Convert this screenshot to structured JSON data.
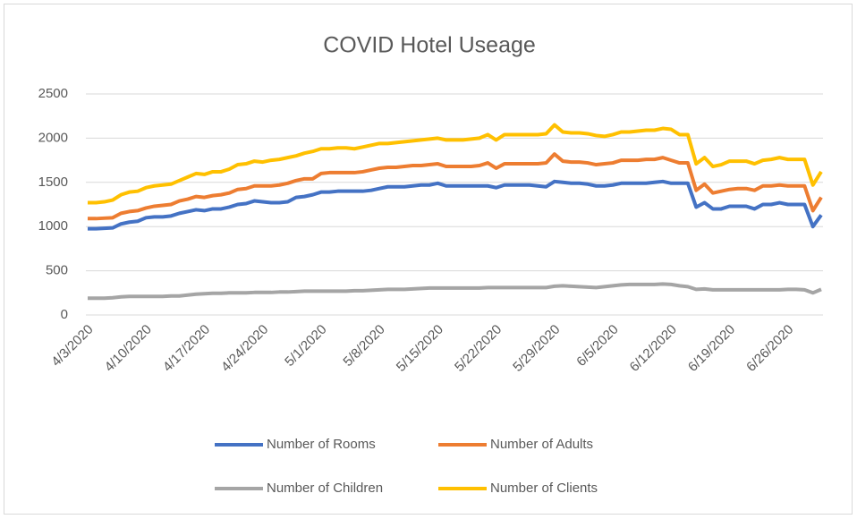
{
  "chart_data": {
    "type": "line",
    "title": "COVID Hotel Useage",
    "categories": [
      "4/3/2020",
      null,
      null,
      null,
      null,
      null,
      null,
      "4/10/2020",
      null,
      null,
      null,
      null,
      null,
      null,
      "4/17/2020",
      null,
      null,
      null,
      null,
      null,
      null,
      "4/24/2020",
      null,
      null,
      null,
      null,
      null,
      null,
      "5/1/2020",
      null,
      null,
      null,
      null,
      null,
      null,
      "5/8/2020",
      null,
      null,
      null,
      null,
      null,
      null,
      "5/15/2020",
      null,
      null,
      null,
      null,
      null,
      null,
      "5/22/2020",
      null,
      null,
      null,
      null,
      null,
      null,
      "5/29/2020",
      null,
      null,
      null,
      null,
      null,
      null,
      "6/5/2020",
      null,
      null,
      null,
      null,
      null,
      null,
      "6/12/2020",
      null,
      null,
      null,
      null,
      null,
      null,
      "6/19/2020",
      null,
      null,
      null,
      null,
      null,
      null,
      "6/26/2020",
      null,
      null,
      null,
      null
    ],
    "series": [
      {
        "name": "Number of Rooms",
        "color": "#4472c4",
        "values": [
          975,
          975,
          980,
          985,
          1030,
          1050,
          1060,
          1100,
          1110,
          1110,
          1120,
          1150,
          1170,
          1190,
          1180,
          1200,
          1200,
          1220,
          1250,
          1260,
          1290,
          1280,
          1270,
          1270,
          1280,
          1330,
          1340,
          1360,
          1390,
          1390,
          1400,
          1400,
          1400,
          1400,
          1410,
          1430,
          1450,
          1450,
          1450,
          1460,
          1470,
          1470,
          1490,
          1460,
          1460,
          1460,
          1460,
          1460,
          1460,
          1440,
          1470,
          1470,
          1470,
          1470,
          1460,
          1450,
          1510,
          1500,
          1490,
          1490,
          1480,
          1460,
          1460,
          1470,
          1490,
          1490,
          1490,
          1490,
          1500,
          1510,
          1490,
          1490,
          1490,
          1220,
          1270,
          1200,
          1200,
          1230,
          1230,
          1230,
          1200,
          1250,
          1250,
          1270,
          1250,
          1250,
          1250,
          1000,
          1130
        ]
      },
      {
        "name": "Number of Adults",
        "color": "#ed7d31",
        "values": [
          1090,
          1090,
          1095,
          1100,
          1150,
          1170,
          1180,
          1210,
          1230,
          1240,
          1250,
          1290,
          1310,
          1340,
          1330,
          1350,
          1360,
          1380,
          1420,
          1430,
          1460,
          1460,
          1460,
          1470,
          1490,
          1520,
          1540,
          1540,
          1600,
          1610,
          1610,
          1610,
          1610,
          1620,
          1640,
          1660,
          1670,
          1670,
          1680,
          1690,
          1690,
          1700,
          1710,
          1680,
          1680,
          1680,
          1680,
          1690,
          1720,
          1660,
          1710,
          1710,
          1710,
          1710,
          1710,
          1720,
          1820,
          1740,
          1730,
          1730,
          1720,
          1700,
          1710,
          1720,
          1750,
          1750,
          1750,
          1760,
          1760,
          1780,
          1750,
          1720,
          1720,
          1410,
          1480,
          1380,
          1400,
          1420,
          1430,
          1430,
          1410,
          1460,
          1460,
          1470,
          1460,
          1460,
          1460,
          1180,
          1330
        ]
      },
      {
        "name": "Number of Children",
        "color": "#a5a5a5",
        "values": [
          190,
          190,
          190,
          195,
          205,
          210,
          210,
          210,
          210,
          210,
          215,
          215,
          225,
          235,
          240,
          245,
          245,
          250,
          250,
          250,
          255,
          255,
          255,
          260,
          260,
          265,
          270,
          270,
          270,
          270,
          270,
          270,
          275,
          275,
          280,
          285,
          290,
          290,
          290,
          295,
          300,
          305,
          305,
          305,
          305,
          305,
          305,
          305,
          310,
          310,
          310,
          310,
          310,
          310,
          310,
          310,
          325,
          330,
          325,
          320,
          315,
          310,
          320,
          330,
          340,
          345,
          345,
          345,
          345,
          350,
          345,
          330,
          320,
          290,
          295,
          285,
          285,
          285,
          285,
          285,
          285,
          285,
          285,
          285,
          290,
          290,
          285,
          250,
          290
        ]
      },
      {
        "name": "Number of Clients",
        "color": "#ffc000",
        "values": [
          1270,
          1270,
          1280,
          1300,
          1360,
          1390,
          1400,
          1440,
          1460,
          1470,
          1480,
          1520,
          1560,
          1600,
          1590,
          1620,
          1620,
          1650,
          1700,
          1710,
          1740,
          1730,
          1750,
          1760,
          1780,
          1800,
          1830,
          1850,
          1880,
          1880,
          1890,
          1890,
          1880,
          1900,
          1920,
          1940,
          1940,
          1950,
          1960,
          1970,
          1980,
          1990,
          2000,
          1980,
          1980,
          1980,
          1990,
          2000,
          2040,
          1980,
          2040,
          2040,
          2040,
          2040,
          2040,
          2050,
          2150,
          2070,
          2060,
          2060,
          2050,
          2030,
          2020,
          2040,
          2070,
          2070,
          2080,
          2090,
          2090,
          2110,
          2100,
          2040,
          2040,
          1710,
          1780,
          1680,
          1700,
          1740,
          1740,
          1740,
          1710,
          1750,
          1760,
          1780,
          1760,
          1760,
          1760,
          1470,
          1620
        ]
      }
    ],
    "ylim": [
      0,
      2500
    ],
    "yticks": [
      0,
      500,
      1000,
      1500,
      2000,
      2500
    ],
    "grid": true,
    "legend": "bottom"
  }
}
